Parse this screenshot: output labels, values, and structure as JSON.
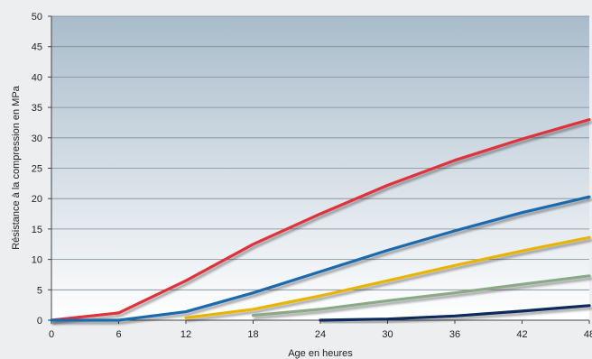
{
  "chart_data": {
    "type": "line",
    "title": "",
    "xlabel": "Age en heures",
    "ylabel": "Résistance à la compression en MPa",
    "xlim": [
      0,
      48
    ],
    "ylim": [
      0,
      50
    ],
    "x_ticks": [
      0,
      6,
      12,
      18,
      24,
      30,
      36,
      42,
      48
    ],
    "y_ticks": [
      0,
      5,
      10,
      15,
      20,
      25,
      30,
      35,
      40,
      45,
      50
    ],
    "grid": "horizontal",
    "legend": "none",
    "x": [
      0,
      6,
      12,
      18,
      24,
      30,
      36,
      42,
      48
    ],
    "series": [
      {
        "color": "#e0303a",
        "values": [
          0,
          1.2,
          6.5,
          12.5,
          17.5,
          22.2,
          26.3,
          29.8,
          33.0
        ]
      },
      {
        "color": "#1a6aae",
        "values": [
          0,
          0,
          1.4,
          4.5,
          8.0,
          11.5,
          14.7,
          17.7,
          20.3
        ]
      },
      {
        "color": "#e8b400",
        "values": [
          null,
          null,
          0.4,
          1.8,
          4.0,
          6.5,
          9.0,
          11.4,
          13.6
        ]
      },
      {
        "color": "#8aaa85",
        "values": [
          null,
          null,
          null,
          0.8,
          1.8,
          3.2,
          4.5,
          5.9,
          7.3
        ]
      },
      {
        "color": "#0d2a5c",
        "values": [
          null,
          null,
          null,
          null,
          0,
          0.2,
          0.7,
          1.5,
          2.4
        ]
      }
    ]
  }
}
